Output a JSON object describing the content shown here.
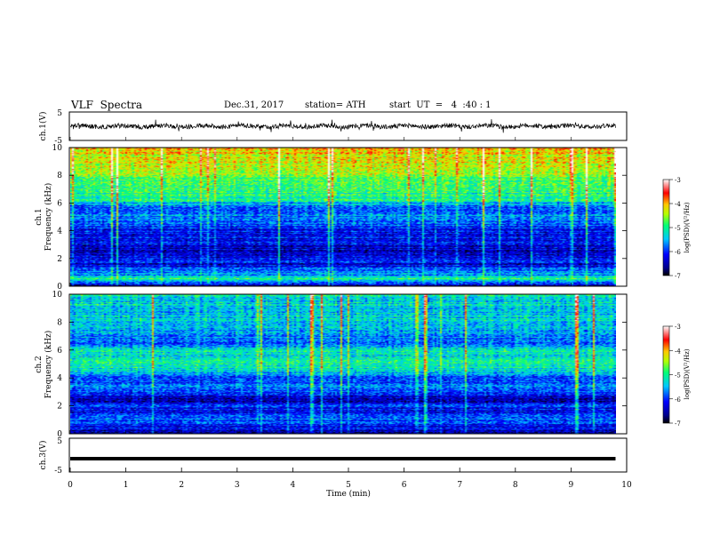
{
  "header": {
    "title": "VLF  Spectra",
    "date": "Dec.31, 2017",
    "station": "station= ATH",
    "start_ut": "start  UT  =   4  :40 : 1"
  },
  "chart_data": [
    {
      "type": "line",
      "panel": "ch1-waveform",
      "ylabel": "ch.1(V)",
      "ylim": [
        -5,
        5
      ],
      "y_ticks": [
        "5",
        "-5"
      ],
      "xlim": [
        0,
        10
      ],
      "series": [
        {
          "description_only": true,
          "x_range": [
            0,
            9.8
          ],
          "baseline": 0,
          "approx_amplitude": 1.5
        }
      ]
    },
    {
      "type": "heatmap",
      "panel": "ch1-spectrogram",
      "ylabel_line1": "ch.1",
      "ylabel_line2": "Frequency  (kHz)",
      "ylim": [
        0,
        10
      ],
      "y_ticks": [
        "0",
        "2",
        "4",
        "6",
        "8",
        "10"
      ],
      "x_range": [
        0,
        9.8
      ],
      "colorbar": {
        "label": "log(PSD)(V²/Hz)",
        "range": [
          -7,
          -3
        ],
        "ticks": [
          "-3",
          "-4",
          "-5",
          "-6",
          "-7"
        ]
      },
      "profile_kHz_vs_logPSD": [
        [
          0,
          -6.6
        ],
        [
          0.5,
          -4.8
        ],
        [
          0.8,
          -5.8
        ],
        [
          1.0,
          -5.6
        ],
        [
          1.5,
          -6.3
        ],
        [
          2.0,
          -6.1
        ],
        [
          2.5,
          -6.5
        ],
        [
          3.0,
          -6.2
        ],
        [
          4.0,
          -6.1
        ],
        [
          4.5,
          -5.9
        ],
        [
          5.0,
          -5.6
        ],
        [
          5.5,
          -6.0
        ],
        [
          6.0,
          -5.5
        ],
        [
          6.2,
          -5.1
        ],
        [
          7.0,
          -4.9
        ],
        [
          8.0,
          -4.6
        ],
        [
          9.0,
          -4.3
        ],
        [
          10.0,
          -4.1
        ]
      ]
    },
    {
      "type": "heatmap",
      "panel": "ch2-spectrogram",
      "ylabel_line1": "ch.2",
      "ylabel_line2": "Frequency  (kHz)",
      "ylim": [
        0,
        10
      ],
      "y_ticks": [
        "0",
        "2",
        "4",
        "6",
        "8",
        "10"
      ],
      "x_range": [
        0,
        9.8
      ],
      "colorbar": {
        "label": "log(PSD)(V²/Hz)",
        "range": [
          -7,
          -3
        ],
        "ticks": [
          "-3",
          "-4",
          "-5",
          "-6",
          "-7"
        ]
      },
      "profile_kHz_vs_logPSD": [
        [
          0,
          -6.5
        ],
        [
          1.0,
          -5.8
        ],
        [
          1.5,
          -6.3
        ],
        [
          2.0,
          -6.0
        ],
        [
          2.5,
          -6.6
        ],
        [
          3.0,
          -5.8
        ],
        [
          4.0,
          -5.9
        ],
        [
          4.5,
          -5.3
        ],
        [
          5.0,
          -5.1
        ],
        [
          5.5,
          -5.3
        ],
        [
          6.0,
          -5.2
        ],
        [
          6.5,
          -5.8
        ],
        [
          7.0,
          -5.6
        ],
        [
          8.0,
          -5.4
        ],
        [
          9.0,
          -5.3
        ],
        [
          10.0,
          -5.2
        ]
      ]
    },
    {
      "type": "line",
      "panel": "ch3-waveform",
      "ylabel": "ch.3(V)",
      "ylim": [
        -5,
        5
      ],
      "y_ticks": [
        "5",
        "-5"
      ],
      "xlim": [
        0,
        10
      ],
      "xlabel": "Time  (min)",
      "x_ticks": [
        "0",
        "1",
        "2",
        "3",
        "4",
        "5",
        "6",
        "7",
        "8",
        "9",
        "10"
      ],
      "series": [
        {
          "x_range": [
            0,
            9.8
          ],
          "values_constant": 0
        }
      ]
    }
  ]
}
